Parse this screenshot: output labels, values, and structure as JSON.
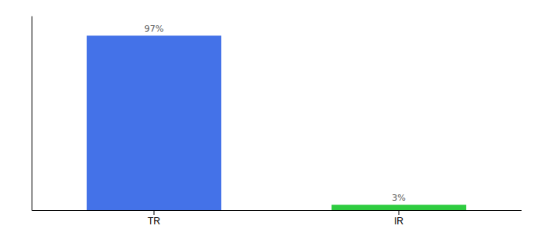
{
  "chart_data": {
    "type": "bar",
    "categories": [
      "TR",
      "IR"
    ],
    "values": [
      97,
      3
    ],
    "value_labels": [
      "97%",
      "3%"
    ],
    "colors": [
      "#4472e8",
      "#2ecc40"
    ],
    "ylim": [
      0,
      108
    ],
    "data_labels": true,
    "tick_labels": "x"
  }
}
